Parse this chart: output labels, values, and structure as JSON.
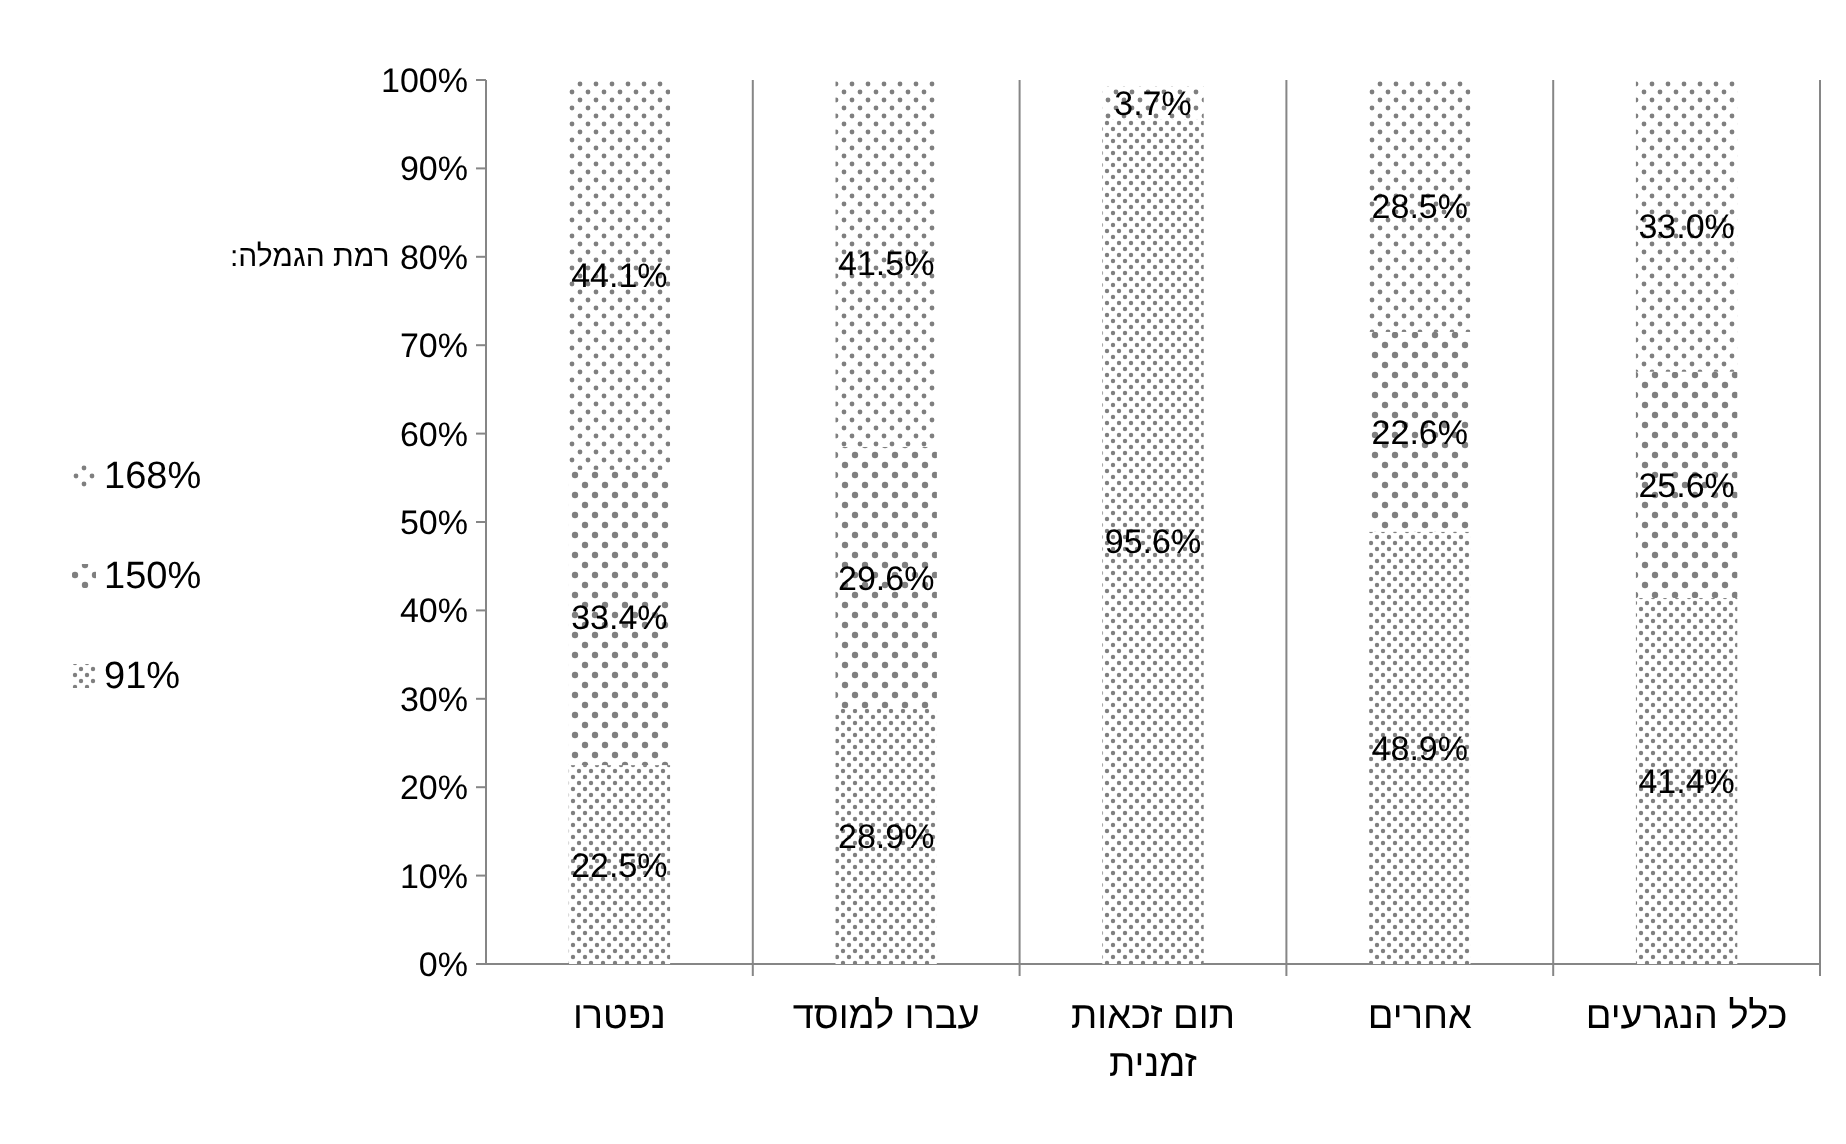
{
  "chart_data": {
    "type": "bar",
    "stacked": true,
    "categories": [
      "נפטרו",
      "עברו למוסד",
      "תום זכאות זמנית",
      "אחרים",
      "כלל הנגרעים"
    ],
    "series": [
      {
        "name": "91%",
        "color": "#7f7f7f",
        "values": [
          22.5,
          28.9,
          95.6,
          48.9,
          41.4
        ],
        "value_labels": [
          "22.5%",
          "28.9%",
          "95.6%",
          "48.9%",
          "41.4%"
        ]
      },
      {
        "name": "150%",
        "color": "#7f7f7f",
        "values": [
          33.4,
          29.6,
          null,
          22.6,
          25.6
        ],
        "value_labels": [
          "33.4%",
          "29.6%",
          null,
          "22.6%",
          "25.6%"
        ]
      },
      {
        "name": "168%",
        "color": "#7f7f7f",
        "values": [
          44.1,
          41.5,
          3.7,
          28.5,
          33.0
        ],
        "value_labels": [
          "44.1%",
          "41.5%",
          "3.7%",
          "28.5%",
          "33.0%"
        ]
      }
    ],
    "legend_title": "רמת הגמלה:",
    "legend": "left",
    "grid": "x",
    "ylim": [
      0,
      100
    ],
    "yticks": [
      {
        "value": 0,
        "label": "0%"
      },
      {
        "value": 10,
        "label": "10%"
      },
      {
        "value": 20,
        "label": "20%"
      },
      {
        "value": 30,
        "label": "30%"
      },
      {
        "value": 40,
        "label": "40%"
      },
      {
        "value": 50,
        "label": "50%"
      },
      {
        "value": 60,
        "label": "60%"
      },
      {
        "value": 70,
        "label": "70%"
      },
      {
        "value": 80,
        "label": "80%"
      },
      {
        "value": 90,
        "label": "90%"
      },
      {
        "value": 100,
        "label": "100%"
      }
    ]
  }
}
